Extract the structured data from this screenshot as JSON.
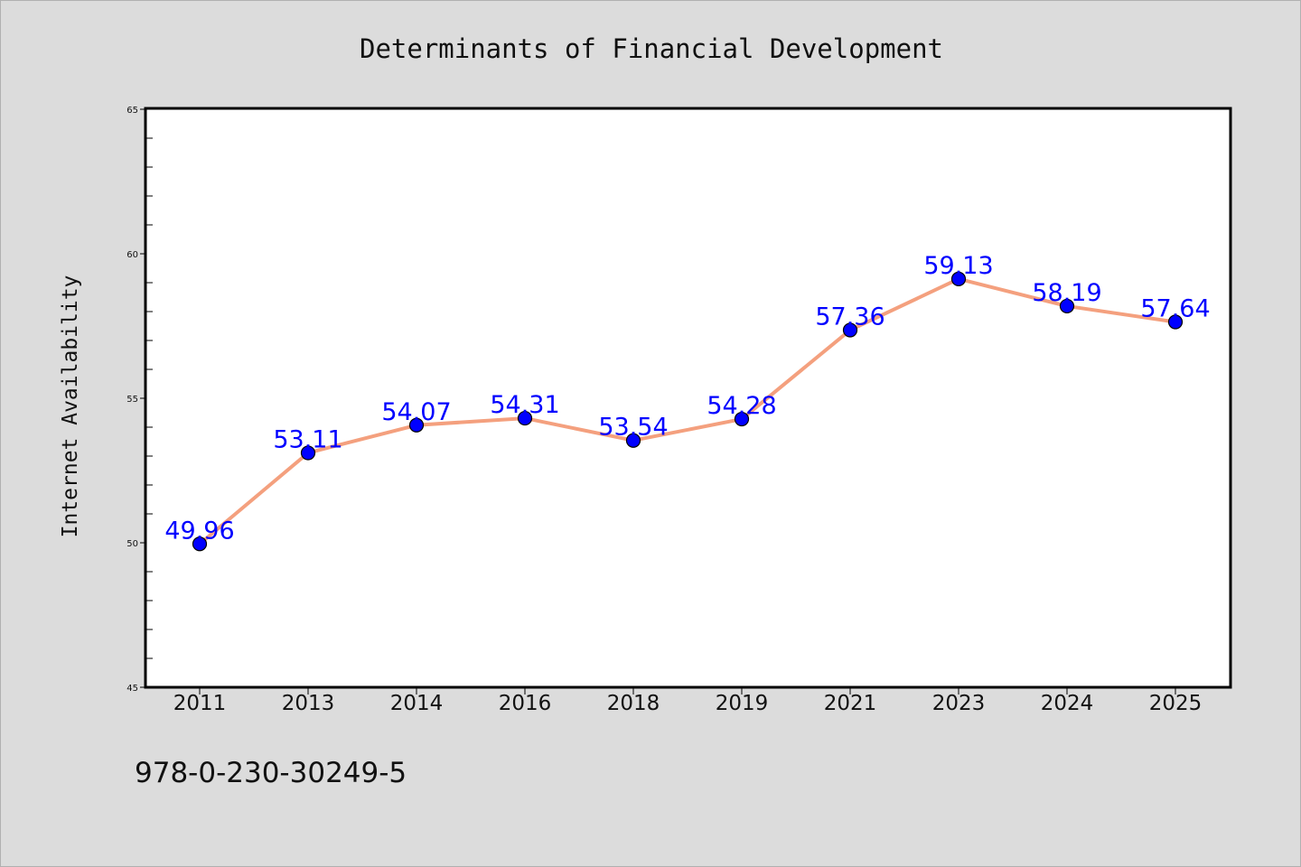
{
  "chart_data": {
    "type": "line",
    "title": "Determinants of Financial Development",
    "xlabel": "",
    "ylabel": "Internet Availability",
    "categories": [
      "2011",
      "2013",
      "2014",
      "2016",
      "2018",
      "2019",
      "2021",
      "2023",
      "2024",
      "2025"
    ],
    "values": [
      49.96,
      53.11,
      54.07,
      54.31,
      53.54,
      54.28,
      57.36,
      59.13,
      58.19,
      57.64
    ],
    "data_labels": [
      "49.96",
      "53.11",
      "54.07",
      "54.31",
      "53.54",
      "54.28",
      "57.36",
      "59.13",
      "58.19",
      "57.64"
    ],
    "ylim": [
      45,
      65
    ],
    "yticks": [
      "45",
      "50",
      "55",
      "60",
      "65"
    ],
    "grid": false,
    "line_color": "#f4a07e",
    "marker_color": "#0000ff",
    "label_color": "#0000ff"
  },
  "annotation": "978-0-230-30249-5"
}
